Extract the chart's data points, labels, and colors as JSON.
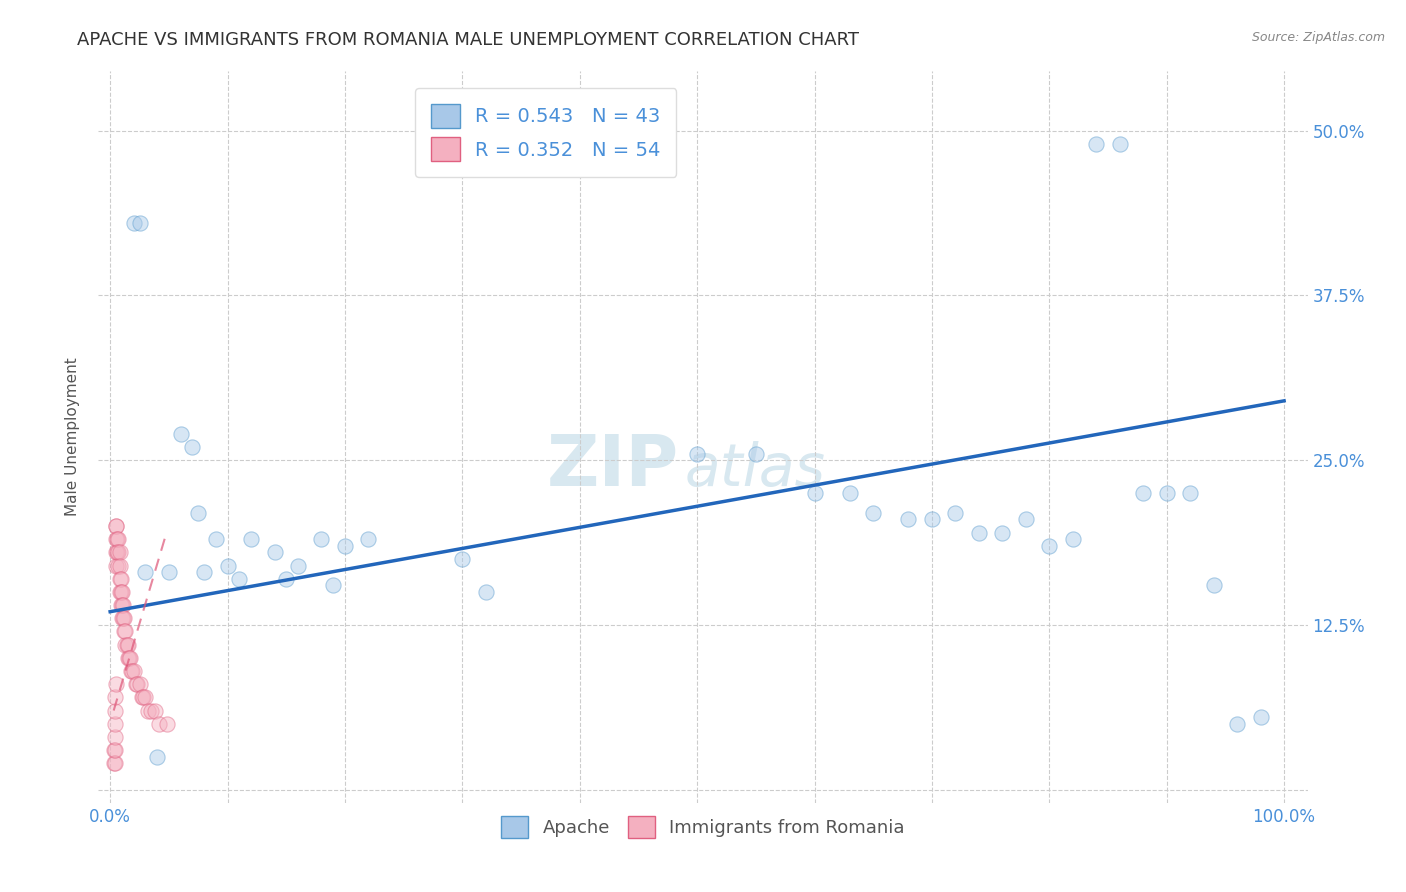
{
  "title": "APACHE VS IMMIGRANTS FROM ROMANIA MALE UNEMPLOYMENT CORRELATION CHART",
  "source": "Source: ZipAtlas.com",
  "ylabel": "Male Unemployment",
  "xlim": [
    -0.01,
    1.02
  ],
  "ylim": [
    -0.01,
    0.545
  ],
  "xticks": [
    0.0,
    0.1,
    0.2,
    0.3,
    0.4,
    0.5,
    0.6,
    0.7,
    0.8,
    0.9,
    1.0
  ],
  "xticklabels": [
    "0.0%",
    "",
    "",
    "",
    "",
    "",
    "",
    "",
    "",
    "",
    "100.0%"
  ],
  "yticks": [
    0.0,
    0.125,
    0.25,
    0.375,
    0.5
  ],
  "yticklabels": [
    "",
    "12.5%",
    "25.0%",
    "37.5%",
    "50.0%"
  ],
  "watermark_zip": "ZIP",
  "watermark_atlas": "atlas",
  "apache_scatter_x": [
    0.02,
    0.025,
    0.04,
    0.06,
    0.07,
    0.075,
    0.09,
    0.1,
    0.12,
    0.14,
    0.16,
    0.18,
    0.2,
    0.22,
    0.3,
    0.32,
    0.5,
    0.55,
    0.6,
    0.63,
    0.65,
    0.68,
    0.7,
    0.72,
    0.74,
    0.76,
    0.78,
    0.8,
    0.82,
    0.84,
    0.86,
    0.88,
    0.9,
    0.92,
    0.94,
    0.96,
    0.98,
    0.03,
    0.05,
    0.08,
    0.11,
    0.15,
    0.19
  ],
  "apache_scatter_y": [
    0.43,
    0.43,
    0.025,
    0.27,
    0.26,
    0.21,
    0.19,
    0.17,
    0.19,
    0.18,
    0.17,
    0.19,
    0.185,
    0.19,
    0.175,
    0.15,
    0.255,
    0.255,
    0.225,
    0.225,
    0.21,
    0.205,
    0.205,
    0.21,
    0.195,
    0.195,
    0.205,
    0.185,
    0.19,
    0.49,
    0.49,
    0.225,
    0.225,
    0.225,
    0.155,
    0.05,
    0.055,
    0.165,
    0.165,
    0.165,
    0.16,
    0.16,
    0.155
  ],
  "romania_scatter_x": [
    0.005,
    0.005,
    0.005,
    0.005,
    0.005,
    0.006,
    0.006,
    0.007,
    0.007,
    0.007,
    0.008,
    0.008,
    0.008,
    0.008,
    0.009,
    0.009,
    0.009,
    0.01,
    0.01,
    0.01,
    0.011,
    0.011,
    0.012,
    0.012,
    0.013,
    0.013,
    0.014,
    0.015,
    0.015,
    0.016,
    0.017,
    0.018,
    0.019,
    0.02,
    0.022,
    0.023,
    0.025,
    0.027,
    0.028,
    0.03,
    0.032,
    0.035,
    0.038,
    0.042,
    0.048,
    0.003,
    0.003,
    0.004,
    0.004,
    0.004,
    0.004,
    0.004,
    0.004,
    0.005
  ],
  "romania_scatter_y": [
    0.2,
    0.19,
    0.18,
    0.17,
    0.2,
    0.19,
    0.18,
    0.19,
    0.18,
    0.17,
    0.18,
    0.17,
    0.16,
    0.15,
    0.16,
    0.15,
    0.14,
    0.15,
    0.14,
    0.13,
    0.14,
    0.13,
    0.13,
    0.12,
    0.12,
    0.11,
    0.11,
    0.11,
    0.1,
    0.1,
    0.1,
    0.09,
    0.09,
    0.09,
    0.08,
    0.08,
    0.08,
    0.07,
    0.07,
    0.07,
    0.06,
    0.06,
    0.06,
    0.05,
    0.05,
    0.02,
    0.03,
    0.02,
    0.03,
    0.04,
    0.05,
    0.06,
    0.07,
    0.08
  ],
  "apache_line_x": [
    0.0,
    1.0
  ],
  "apache_line_y": [
    0.135,
    0.295
  ],
  "romania_line_x": [
    0.003,
    0.048
  ],
  "romania_line_y": [
    0.06,
    0.195
  ],
  "scatter_size": 120,
  "scatter_alpha": 0.45,
  "apache_color": "#a8c8e8",
  "romania_color": "#f4b0c0",
  "apache_edge": "#5599cc",
  "romania_edge": "#e06080",
  "grid_color": "#cccccc",
  "background_color": "#ffffff",
  "title_fontsize": 13,
  "axis_label_fontsize": 11,
  "tick_fontsize": 12,
  "watermark_fontsize_zip": 52,
  "watermark_fontsize_atlas": 42,
  "watermark_color": "#d8e8f0"
}
